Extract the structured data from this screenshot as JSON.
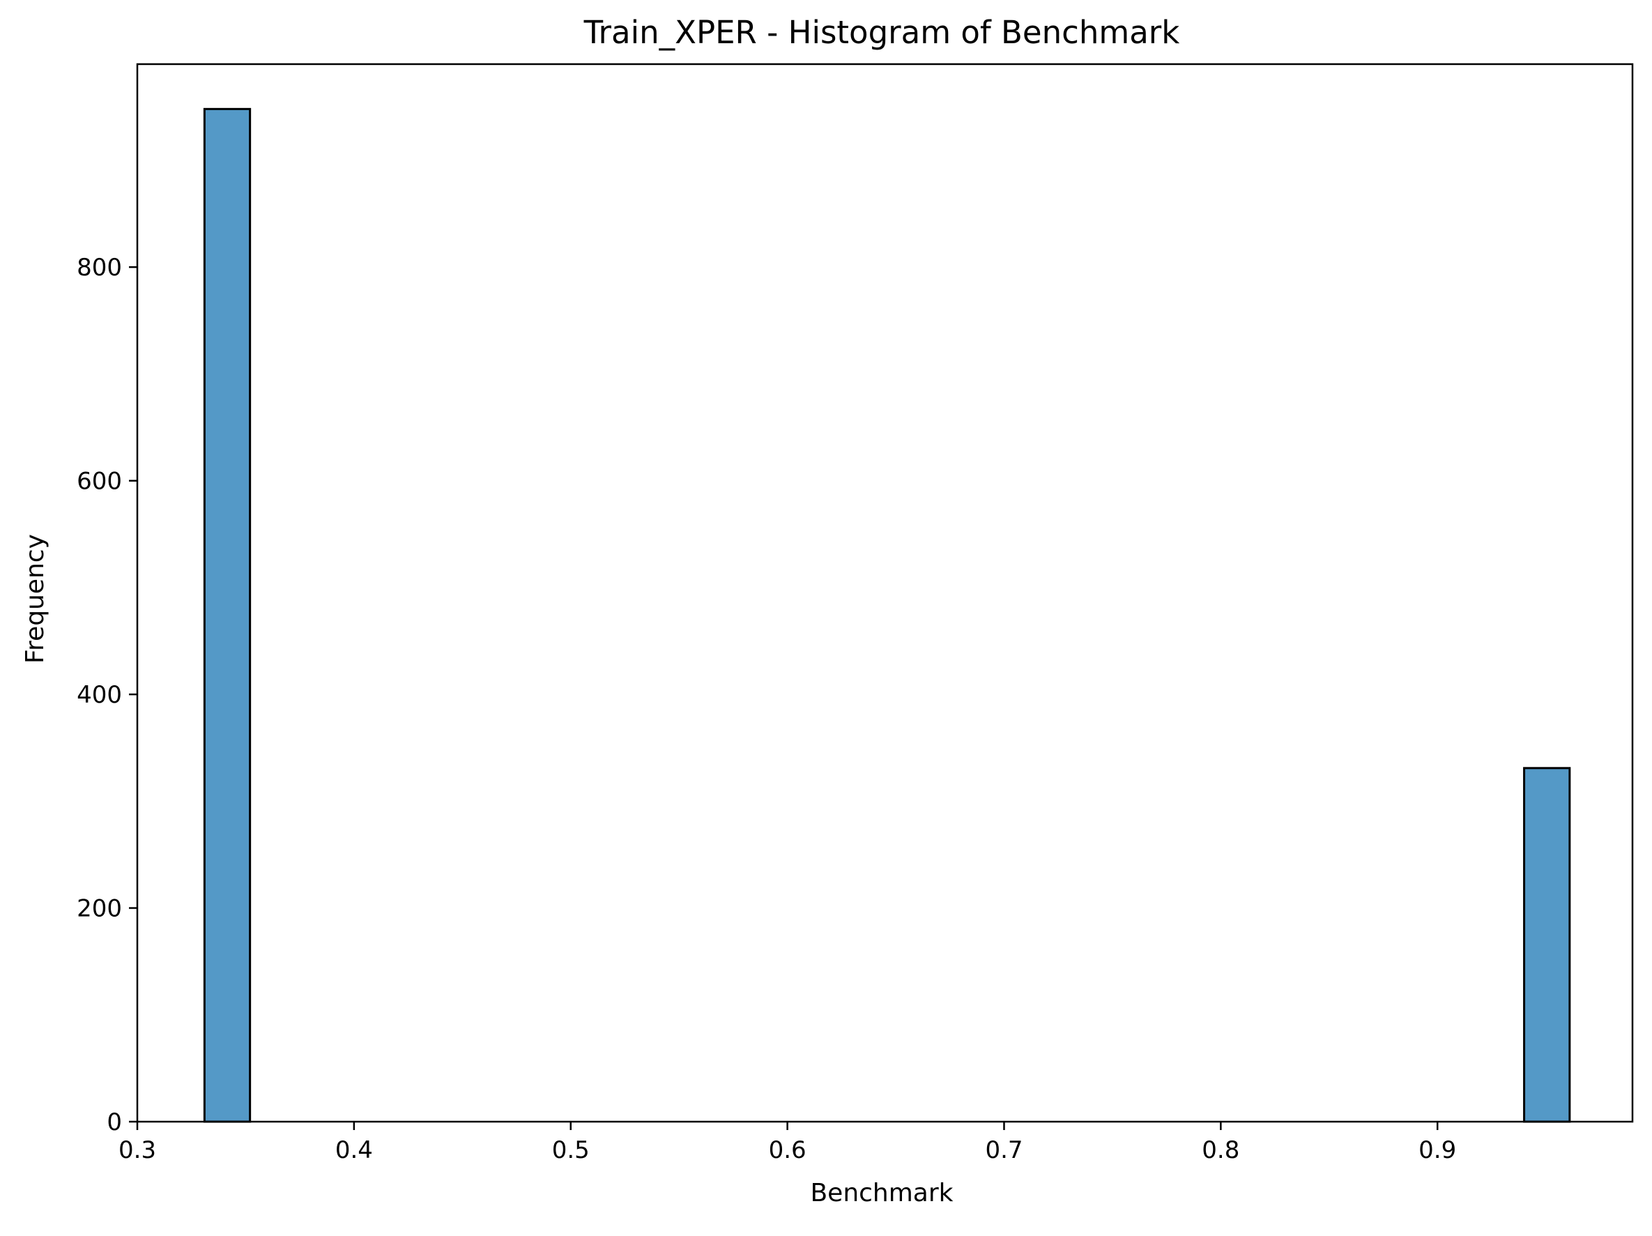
{
  "chart_data": {
    "type": "bar",
    "title": "Train_XPER - Histogram of Benchmark",
    "xlabel": "Benchmark",
    "ylabel": "Frequency",
    "xlim": [
      0.3,
      0.99
    ],
    "ylim": [
      0,
      990
    ],
    "xticks": [
      0.3,
      0.4,
      0.5,
      0.6,
      0.7,
      0.8,
      0.9
    ],
    "xtick_labels": [
      "0.3",
      "0.4",
      "0.5",
      "0.6",
      "0.7",
      "0.8",
      "0.9"
    ],
    "yticks": [
      0,
      200,
      400,
      600,
      800
    ],
    "ytick_labels": [
      "0",
      "200",
      "400",
      "600",
      "800"
    ],
    "bins": [
      {
        "x0": 0.331,
        "x1": 0.352,
        "count": 948
      },
      {
        "x0": 0.352,
        "x1": 0.373,
        "count": 0
      },
      {
        "x0": 0.373,
        "x1": 0.394,
        "count": 0
      },
      {
        "x0": 0.394,
        "x1": 0.415,
        "count": 0
      },
      {
        "x0": 0.415,
        "x1": 0.436,
        "count": 0
      },
      {
        "x0": 0.436,
        "x1": 0.457,
        "count": 0
      },
      {
        "x0": 0.457,
        "x1": 0.478,
        "count": 0
      },
      {
        "x0": 0.478,
        "x1": 0.499,
        "count": 0
      },
      {
        "x0": 0.499,
        "x1": 0.52,
        "count": 0
      },
      {
        "x0": 0.52,
        "x1": 0.541,
        "count": 0
      },
      {
        "x0": 0.541,
        "x1": 0.562,
        "count": 0
      },
      {
        "x0": 0.562,
        "x1": 0.583,
        "count": 0
      },
      {
        "x0": 0.583,
        "x1": 0.604,
        "count": 0
      },
      {
        "x0": 0.604,
        "x1": 0.625,
        "count": 0
      },
      {
        "x0": 0.625,
        "x1": 0.646,
        "count": 0
      },
      {
        "x0": 0.646,
        "x1": 0.667,
        "count": 0
      },
      {
        "x0": 0.667,
        "x1": 0.688,
        "count": 0
      },
      {
        "x0": 0.688,
        "x1": 0.709,
        "count": 0
      },
      {
        "x0": 0.709,
        "x1": 0.73,
        "count": 0
      },
      {
        "x0": 0.73,
        "x1": 0.751,
        "count": 0
      },
      {
        "x0": 0.751,
        "x1": 0.772,
        "count": 0
      },
      {
        "x0": 0.772,
        "x1": 0.793,
        "count": 0
      },
      {
        "x0": 0.793,
        "x1": 0.814,
        "count": 0
      },
      {
        "x0": 0.814,
        "x1": 0.835,
        "count": 0
      },
      {
        "x0": 0.835,
        "x1": 0.856,
        "count": 0
      },
      {
        "x0": 0.856,
        "x1": 0.877,
        "count": 0
      },
      {
        "x0": 0.877,
        "x1": 0.898,
        "count": 0
      },
      {
        "x0": 0.898,
        "x1": 0.919,
        "count": 0
      },
      {
        "x0": 0.919,
        "x1": 0.94,
        "count": 0
      },
      {
        "x0": 0.94,
        "x1": 0.961,
        "count": 331
      }
    ],
    "grid": false,
    "legend": "none",
    "colors": {
      "bar_fill": "#5499c7",
      "bar_edge": "#000000",
      "axis": "#000000",
      "background": "#ffffff"
    }
  }
}
